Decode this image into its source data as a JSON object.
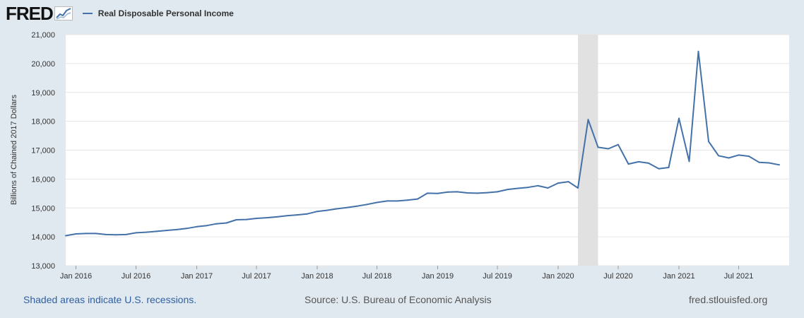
{
  "header": {
    "logo_text": "FRED",
    "legend_label": "Real Disposable Personal Income"
  },
  "footer": {
    "recession_note": "Shaded areas indicate U.S. recessions.",
    "source": "Source: U.S. Bureau of Economic Analysis",
    "site": "fred.stlouisfed.org"
  },
  "colors": {
    "line": "#4472a8",
    "recession": "#e1e1e1",
    "background": "#e1e9f0",
    "plot": "#ffffff"
  },
  "chart_data": {
    "type": "line",
    "ylabel": "Billions of Chained 2017 Dollars",
    "ylim": [
      13000,
      21000
    ],
    "yticks": [
      13000,
      14000,
      15000,
      16000,
      17000,
      18000,
      19000,
      20000,
      21000
    ],
    "ytick_labels": [
      "13,000",
      "14,000",
      "15,000",
      "16,000",
      "17,000",
      "18,000",
      "19,000",
      "20,000",
      "21,000"
    ],
    "xlim": [
      "2015-12-01",
      "2021-12-01"
    ],
    "xticks": [
      "2016-01-01",
      "2016-07-01",
      "2017-01-01",
      "2017-07-01",
      "2018-01-01",
      "2018-07-01",
      "2019-01-01",
      "2019-07-01",
      "2020-01-01",
      "2020-07-01",
      "2021-01-01",
      "2021-07-01"
    ],
    "xtick_labels": [
      "Jan 2016",
      "Jul 2016",
      "Jan 2017",
      "Jul 2017",
      "Jan 2018",
      "Jul 2018",
      "Jan 2019",
      "Jul 2019",
      "Jan 2020",
      "Jul 2020",
      "Jan 2021",
      "Jul 2021"
    ],
    "grid": true,
    "recessions": [
      [
        "2020-03-01",
        "2020-05-01"
      ]
    ],
    "series": [
      {
        "name": "Real Disposable Personal Income",
        "x": [
          "2015-12-01",
          "2016-01-01",
          "2016-02-01",
          "2016-03-01",
          "2016-04-01",
          "2016-05-01",
          "2016-06-01",
          "2016-07-01",
          "2016-08-01",
          "2016-09-01",
          "2016-10-01",
          "2016-11-01",
          "2016-12-01",
          "2017-01-01",
          "2017-02-01",
          "2017-03-01",
          "2017-04-01",
          "2017-05-01",
          "2017-06-01",
          "2017-07-01",
          "2017-08-01",
          "2017-09-01",
          "2017-10-01",
          "2017-11-01",
          "2017-12-01",
          "2018-01-01",
          "2018-02-01",
          "2018-03-01",
          "2018-04-01",
          "2018-05-01",
          "2018-06-01",
          "2018-07-01",
          "2018-08-01",
          "2018-09-01",
          "2018-10-01",
          "2018-11-01",
          "2018-12-01",
          "2019-01-01",
          "2019-02-01",
          "2019-03-01",
          "2019-04-01",
          "2019-05-01",
          "2019-06-01",
          "2019-07-01",
          "2019-08-01",
          "2019-09-01",
          "2019-10-01",
          "2019-11-01",
          "2019-12-01",
          "2020-01-01",
          "2020-02-01",
          "2020-03-01",
          "2020-04-01",
          "2020-05-01",
          "2020-06-01",
          "2020-07-01",
          "2020-08-01",
          "2020-09-01",
          "2020-10-01",
          "2020-11-01",
          "2020-12-01",
          "2021-01-01",
          "2021-02-01",
          "2021-03-01",
          "2021-04-01",
          "2021-05-01",
          "2021-06-01",
          "2021-07-01",
          "2021-08-01",
          "2021-09-01",
          "2021-10-01",
          "2021-11-01"
        ],
        "values": [
          14040,
          14100,
          14115,
          14115,
          14080,
          14070,
          14080,
          14140,
          14160,
          14190,
          14220,
          14250,
          14290,
          14350,
          14390,
          14450,
          14480,
          14590,
          14600,
          14640,
          14660,
          14690,
          14730,
          14760,
          14790,
          14880,
          14920,
          14970,
          15010,
          15060,
          15120,
          15190,
          15240,
          15240,
          15270,
          15310,
          15510,
          15500,
          15550,
          15560,
          15520,
          15510,
          15530,
          15560,
          15640,
          15680,
          15710,
          15770,
          15690,
          15860,
          15910,
          15690,
          18060,
          17100,
          17050,
          17190,
          16520,
          16600,
          16550,
          16360,
          16400,
          18100,
          16610,
          20420,
          17300,
          16810,
          16730,
          16830,
          16790,
          16580,
          16560,
          16490
        ]
      }
    ]
  }
}
